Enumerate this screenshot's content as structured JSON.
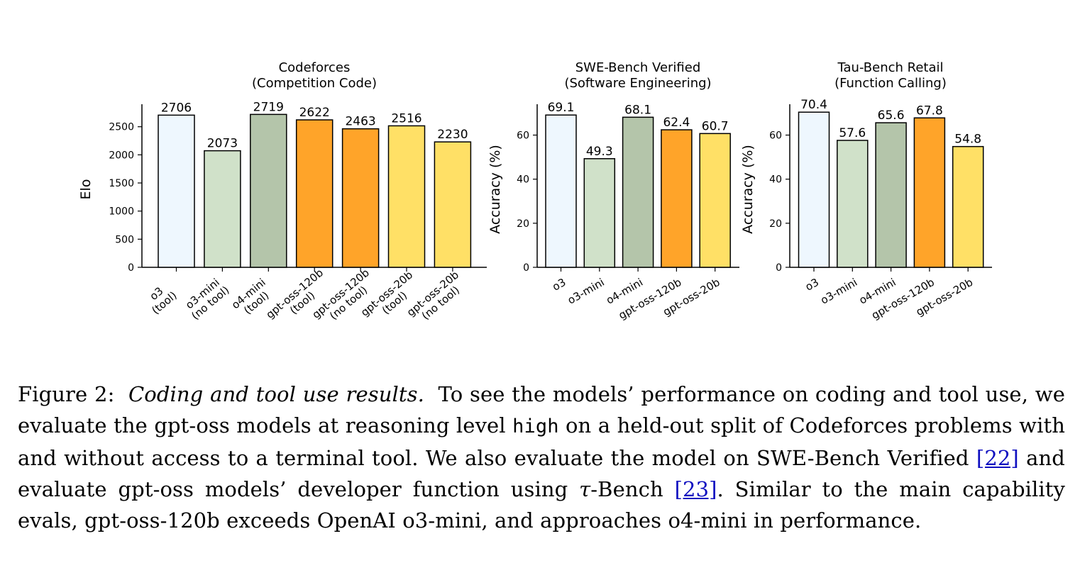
{
  "chart_data": [
    {
      "type": "bar",
      "title": "Codeforces\n(Competition Code)",
      "ylabel": "Elo",
      "ylim": [
        0,
        2900
      ],
      "yticks": [
        0,
        500,
        1000,
        1500,
        2000,
        2500
      ],
      "categories": [
        "o3\n(tool)",
        "o3-mini\n(no tool)",
        "o4-mini\n(tool)",
        "gpt-oss-120b\n(tool)",
        "gpt-oss-120b\n(no tool)",
        "gpt-oss-20b\n(tool)",
        "gpt-oss-20b\n(no tool)"
      ],
      "values": [
        2706,
        2073,
        2719,
        2622,
        2463,
        2516,
        2230
      ],
      "labels": [
        "2706",
        "2073",
        "2719",
        "2622",
        "2463",
        "2516",
        "2230"
      ],
      "colors": [
        "#eef7fe",
        "#d0e1c9",
        "#b4c5aa",
        "#ffa429",
        "#ffa429",
        "#ffe066",
        "#ffe066"
      ]
    },
    {
      "type": "bar",
      "title": "SWE-Bench Verified\n(Software Engineering)",
      "ylabel": "Accuracy (%)",
      "ylim": [
        0,
        74
      ],
      "yticks": [
        0,
        20,
        40,
        60
      ],
      "categories": [
        "o3",
        "o3-mini",
        "o4-mini",
        "gpt-oss-120b",
        "gpt-oss-20b"
      ],
      "values": [
        69.1,
        49.3,
        68.1,
        62.4,
        60.7
      ],
      "labels": [
        "69.1",
        "49.3",
        "68.1",
        "62.4",
        "60.7"
      ],
      "colors": [
        "#eef7fe",
        "#d0e1c9",
        "#b4c5aa",
        "#ffa429",
        "#ffe066"
      ]
    },
    {
      "type": "bar",
      "title": "Tau-Bench Retail\n(Function Calling)",
      "ylabel": "Accuracy (%)",
      "ylim": [
        0,
        74
      ],
      "yticks": [
        0,
        20,
        40,
        60
      ],
      "categories": [
        "o3",
        "o3-mini",
        "o4-mini",
        "gpt-oss-120b",
        "gpt-oss-20b"
      ],
      "values": [
        70.4,
        57.6,
        65.6,
        67.8,
        54.8
      ],
      "labels": [
        "70.4",
        "57.6",
        "65.6",
        "67.8",
        "54.8"
      ],
      "colors": [
        "#eef7fe",
        "#d0e1c9",
        "#b4c5aa",
        "#ffa429",
        "#ffe066"
      ]
    }
  ],
  "caption": {
    "figure_label": "Figure 2:",
    "title": "Coding and tool use results.",
    "text_1": "To see the models’ performance on coding and tool use, we evaluate the gpt-oss models at reasoning level",
    "code": "high",
    "text_2": "on a held-out split of Codeforces problems with and without access to a terminal tool. We also evaluate the model on SWE-Bench Verified",
    "ref_1": "[22]",
    "text_3": "and evaluate gpt-oss models’ developer function using",
    "tau": "τ",
    "text_4": "-Bench",
    "ref_2": "[23]",
    "text_5": ". Similar to the main capability evals, gpt-oss-120b exceeds OpenAI o3-mini, and approaches o4-mini in performance."
  }
}
